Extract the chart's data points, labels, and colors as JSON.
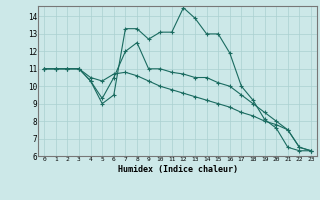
{
  "xlabel": "Humidex (Indice chaleur)",
  "bg_color": "#cce8e8",
  "grid_color": "#aad0d0",
  "line_color": "#1a6b60",
  "xlim": [
    -0.5,
    23.5
  ],
  "ylim": [
    6,
    14.6
  ],
  "yticks": [
    6,
    7,
    8,
    9,
    10,
    11,
    12,
    13,
    14
  ],
  "xticks": [
    0,
    1,
    2,
    3,
    4,
    5,
    6,
    7,
    8,
    9,
    10,
    11,
    12,
    13,
    14,
    15,
    16,
    17,
    18,
    19,
    20,
    21,
    22,
    23
  ],
  "line1_x": [
    0,
    1,
    2,
    3,
    4,
    5,
    6,
    7,
    8,
    9,
    10,
    11,
    12,
    13,
    14,
    15,
    16,
    17,
    18,
    19,
    20,
    21,
    22,
    23
  ],
  "line1_y": [
    11,
    11,
    11,
    11,
    10.3,
    9.0,
    9.5,
    13.3,
    13.3,
    12.7,
    13.1,
    13.1,
    14.5,
    13.9,
    13.0,
    13.0,
    11.9,
    10.0,
    9.2,
    8.1,
    7.6,
    6.5,
    6.3,
    6.3
  ],
  "line2_x": [
    0,
    1,
    2,
    3,
    4,
    5,
    6,
    7,
    8,
    9,
    10,
    11,
    12,
    13,
    14,
    15,
    16,
    17,
    18,
    19,
    20,
    21,
    22,
    23
  ],
  "line2_y": [
    11,
    11,
    11,
    11,
    10.3,
    9.3,
    10.5,
    12.0,
    12.5,
    11.0,
    11.0,
    10.8,
    10.7,
    10.5,
    10.5,
    10.2,
    10.0,
    9.5,
    9.0,
    8.5,
    8.0,
    7.5,
    6.5,
    6.3
  ],
  "line3_x": [
    0,
    1,
    2,
    3,
    4,
    5,
    6,
    7,
    8,
    9,
    10,
    11,
    12,
    13,
    14,
    15,
    16,
    17,
    18,
    19,
    20,
    21,
    22,
    23
  ],
  "line3_y": [
    11,
    11,
    11,
    11,
    10.5,
    10.3,
    10.7,
    10.8,
    10.6,
    10.3,
    10.0,
    9.8,
    9.6,
    9.4,
    9.2,
    9.0,
    8.8,
    8.5,
    8.3,
    8.0,
    7.8,
    7.5,
    6.5,
    6.3
  ]
}
